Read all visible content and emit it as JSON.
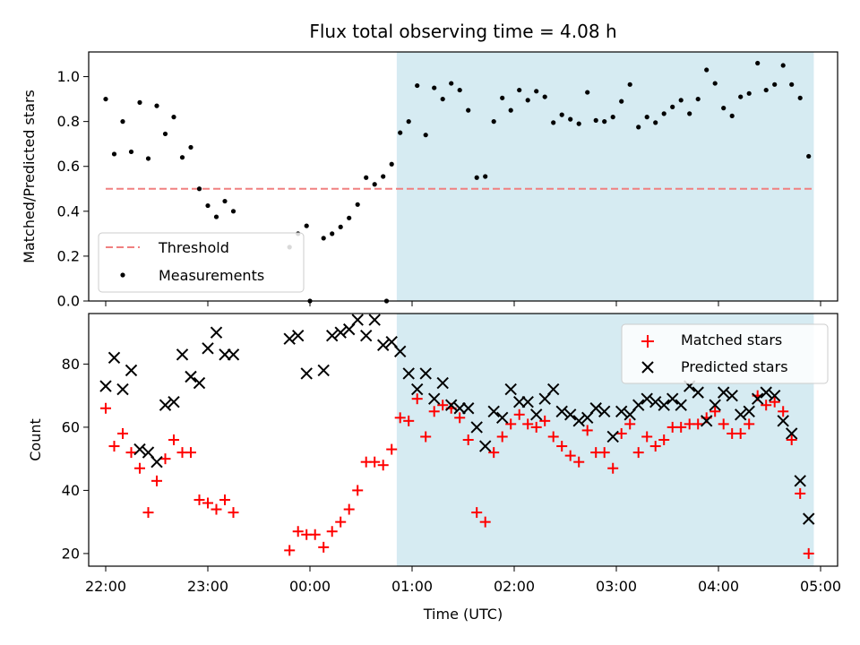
{
  "chart_data": [
    {
      "type": "scatter",
      "title": "Flux total observing time = 4.08 h",
      "ylabel": "Matched/Predicted stars",
      "xlabel": "",
      "xlim": [
        "21:50",
        "05:10"
      ],
      "ylim": [
        0.0,
        1.11
      ],
      "yticks": [
        "0.0",
        "0.2",
        "0.4",
        "0.6",
        "0.8",
        "1.0"
      ],
      "shaded_span": {
        "start": "00:51",
        "end": "04:56",
        "color": "#add8e6"
      },
      "threshold": {
        "name": "Threshold",
        "value": 0.5,
        "start": "22:00",
        "end": "04:56",
        "color": "#f08080"
      },
      "legend": {
        "position": "lower-left",
        "entries": [
          "Threshold",
          "Measurements"
        ]
      },
      "series": [
        {
          "name": "Measurements",
          "marker": "dot",
          "color": "#000000",
          "points": [
            [
              "22:00",
              0.9
            ],
            [
              "22:05",
              0.655
            ],
            [
              "22:10",
              0.8
            ],
            [
              "22:15",
              0.665
            ],
            [
              "22:20",
              0.885
            ],
            [
              "22:25",
              0.635
            ],
            [
              "22:30",
              0.87
            ],
            [
              "22:35",
              0.745
            ],
            [
              "22:40",
              0.82
            ],
            [
              "22:45",
              0.64
            ],
            [
              "22:50",
              0.685
            ],
            [
              "22:55",
              0.5
            ],
            [
              "23:00",
              0.425
            ],
            [
              "23:05",
              0.375
            ],
            [
              "23:10",
              0.445
            ],
            [
              "23:15",
              0.4
            ],
            [
              "23:48",
              0.24
            ],
            [
              "23:53",
              0.3
            ],
            [
              "23:58",
              0.335
            ],
            [
              "00:00",
              0.0
            ],
            [
              "00:08",
              0.28
            ],
            [
              "00:13",
              0.3
            ],
            [
              "00:18",
              0.33
            ],
            [
              "00:23",
              0.37
            ],
            [
              "00:28",
              0.43
            ],
            [
              "00:33",
              0.55
            ],
            [
              "00:38",
              0.52
            ],
            [
              "00:43",
              0.555
            ],
            [
              "00:45",
              0.0
            ],
            [
              "00:48",
              0.61
            ],
            [
              "00:53",
              0.75
            ],
            [
              "00:58",
              0.8
            ],
            [
              "01:03",
              0.96
            ],
            [
              "01:08",
              0.74
            ],
            [
              "01:13",
              0.95
            ],
            [
              "01:18",
              0.9
            ],
            [
              "01:23",
              0.97
            ],
            [
              "01:28",
              0.94
            ],
            [
              "01:33",
              0.85
            ],
            [
              "01:38",
              0.55
            ],
            [
              "01:43",
              0.555
            ],
            [
              "01:48",
              0.8
            ],
            [
              "01:53",
              0.905
            ],
            [
              "01:58",
              0.85
            ],
            [
              "02:03",
              0.94
            ],
            [
              "02:08",
              0.895
            ],
            [
              "02:13",
              0.935
            ],
            [
              "02:18",
              0.91
            ],
            [
              "02:23",
              0.795
            ],
            [
              "02:28",
              0.83
            ],
            [
              "02:33",
              0.81
            ],
            [
              "02:38",
              0.79
            ],
            [
              "02:43",
              0.93
            ],
            [
              "02:48",
              0.805
            ],
            [
              "02:53",
              0.8
            ],
            [
              "02:58",
              0.82
            ],
            [
              "03:03",
              0.89
            ],
            [
              "03:08",
              0.965
            ],
            [
              "03:13",
              0.775
            ],
            [
              "03:18",
              0.82
            ],
            [
              "03:23",
              0.795
            ],
            [
              "03:28",
              0.835
            ],
            [
              "03:33",
              0.865
            ],
            [
              "03:38",
              0.895
            ],
            [
              "03:43",
              0.835
            ],
            [
              "03:48",
              0.9
            ],
            [
              "03:53",
              1.03
            ],
            [
              "03:58",
              0.97
            ],
            [
              "04:03",
              0.86
            ],
            [
              "04:08",
              0.825
            ],
            [
              "04:13",
              0.91
            ],
            [
              "04:18",
              0.925
            ],
            [
              "04:23",
              1.06
            ],
            [
              "04:28",
              0.94
            ],
            [
              "04:33",
              0.965
            ],
            [
              "04:38",
              1.05
            ],
            [
              "04:43",
              0.965
            ],
            [
              "04:48",
              0.905
            ],
            [
              "04:53",
              0.645
            ]
          ]
        }
      ]
    },
    {
      "type": "scatter",
      "title": "",
      "xlabel": "Time (UTC)",
      "ylabel": "Count",
      "xlim": [
        "21:50",
        "05:10"
      ],
      "ylim": [
        16,
        96
      ],
      "xticks": [
        "22:00",
        "23:00",
        "00:00",
        "01:00",
        "02:00",
        "03:00",
        "04:00",
        "05:00"
      ],
      "yticks": [
        "20",
        "40",
        "60",
        "80"
      ],
      "shaded_span": {
        "start": "00:51",
        "end": "04:56",
        "color": "#add8e6"
      },
      "legend": {
        "position": "upper-right",
        "entries": [
          "Matched stars",
          "Predicted stars"
        ]
      },
      "series": [
        {
          "name": "Matched stars",
          "marker": "plus",
          "color": "#ff0000",
          "points": [
            [
              "22:00",
              66
            ],
            [
              "22:05",
              54
            ],
            [
              "22:10",
              58
            ],
            [
              "22:15",
              52
            ],
            [
              "22:20",
              47
            ],
            [
              "22:25",
              33
            ],
            [
              "22:30",
              43
            ],
            [
              "22:35",
              50
            ],
            [
              "22:40",
              56
            ],
            [
              "22:45",
              52
            ],
            [
              "22:50",
              52
            ],
            [
              "22:55",
              37
            ],
            [
              "23:00",
              36
            ],
            [
              "23:05",
              34
            ],
            [
              "23:10",
              37
            ],
            [
              "23:15",
              33
            ],
            [
              "23:48",
              21
            ],
            [
              "23:53",
              27
            ],
            [
              "23:58",
              26
            ],
            [
              "00:03",
              26
            ],
            [
              "00:08",
              22
            ],
            [
              "00:13",
              27
            ],
            [
              "00:18",
              30
            ],
            [
              "00:23",
              34
            ],
            [
              "00:28",
              40
            ],
            [
              "00:33",
              49
            ],
            [
              "00:38",
              49
            ],
            [
              "00:43",
              48
            ],
            [
              "00:48",
              53
            ],
            [
              "00:53",
              63
            ],
            [
              "00:58",
              62
            ],
            [
              "01:03",
              69
            ],
            [
              "01:08",
              57
            ],
            [
              "01:13",
              65
            ],
            [
              "01:18",
              67
            ],
            [
              "01:23",
              66
            ],
            [
              "01:28",
              63
            ],
            [
              "01:33",
              56
            ],
            [
              "01:38",
              33
            ],
            [
              "01:43",
              30
            ],
            [
              "01:48",
              52
            ],
            [
              "01:53",
              57
            ],
            [
              "01:58",
              61
            ],
            [
              "02:03",
              64
            ],
            [
              "02:08",
              61
            ],
            [
              "02:13",
              60
            ],
            [
              "02:18",
              62
            ],
            [
              "02:23",
              57
            ],
            [
              "02:28",
              54
            ],
            [
              "02:33",
              51
            ],
            [
              "02:38",
              49
            ],
            [
              "02:43",
              59
            ],
            [
              "02:48",
              52
            ],
            [
              "02:53",
              52
            ],
            [
              "02:58",
              47
            ],
            [
              "03:03",
              58
            ],
            [
              "03:08",
              61
            ],
            [
              "03:13",
              52
            ],
            [
              "03:18",
              57
            ],
            [
              "03:23",
              54
            ],
            [
              "03:28",
              56
            ],
            [
              "03:33",
              60
            ],
            [
              "03:38",
              60
            ],
            [
              "03:43",
              61
            ],
            [
              "03:48",
              61
            ],
            [
              "03:53",
              63
            ],
            [
              "03:58",
              65
            ],
            [
              "04:03",
              61
            ],
            [
              "04:08",
              58
            ],
            [
              "04:13",
              58
            ],
            [
              "04:18",
              61
            ],
            [
              "04:23",
              70
            ],
            [
              "04:28",
              67
            ],
            [
              "04:33",
              68
            ],
            [
              "04:38",
              65
            ],
            [
              "04:43",
              56
            ],
            [
              "04:48",
              39
            ],
            [
              "04:53",
              20
            ]
          ]
        },
        {
          "name": "Predicted stars",
          "marker": "x",
          "color": "#000000",
          "points": [
            [
              "22:00",
              73
            ],
            [
              "22:05",
              82
            ],
            [
              "22:10",
              72
            ],
            [
              "22:15",
              78
            ],
            [
              "22:20",
              53
            ],
            [
              "22:25",
              52
            ],
            [
              "22:30",
              49
            ],
            [
              "22:35",
              67
            ],
            [
              "22:40",
              68
            ],
            [
              "22:45",
              83
            ],
            [
              "22:50",
              76
            ],
            [
              "22:55",
              74
            ],
            [
              "23:00",
              85
            ],
            [
              "23:05",
              90
            ],
            [
              "23:10",
              83
            ],
            [
              "23:15",
              83
            ],
            [
              "23:48",
              88
            ],
            [
              "23:53",
              89
            ],
            [
              "23:58",
              77
            ],
            [
              "00:08",
              78
            ],
            [
              "00:13",
              89
            ],
            [
              "00:18",
              90
            ],
            [
              "00:23",
              91
            ],
            [
              "00:28",
              94
            ],
            [
              "00:33",
              89
            ],
            [
              "00:38",
              94
            ],
            [
              "00:43",
              86
            ],
            [
              "00:48",
              87
            ],
            [
              "00:53",
              84
            ],
            [
              "00:58",
              77
            ],
            [
              "01:03",
              72
            ],
            [
              "01:08",
              77
            ],
            [
              "01:13",
              69
            ],
            [
              "01:18",
              74
            ],
            [
              "01:23",
              67
            ],
            [
              "01:28",
              66
            ],
            [
              "01:33",
              66
            ],
            [
              "01:38",
              60
            ],
            [
              "01:43",
              54
            ],
            [
              "01:48",
              65
            ],
            [
              "01:53",
              63
            ],
            [
              "01:58",
              72
            ],
            [
              "02:03",
              68
            ],
            [
              "02:08",
              68
            ],
            [
              "02:13",
              64
            ],
            [
              "02:18",
              69
            ],
            [
              "02:23",
              72
            ],
            [
              "02:28",
              65
            ],
            [
              "02:33",
              64
            ],
            [
              "02:38",
              62
            ],
            [
              "02:43",
              63
            ],
            [
              "02:48",
              66
            ],
            [
              "02:53",
              65
            ],
            [
              "02:58",
              57
            ],
            [
              "03:03",
              65
            ],
            [
              "03:08",
              64
            ],
            [
              "03:13",
              67
            ],
            [
              "03:18",
              69
            ],
            [
              "03:23",
              68
            ],
            [
              "03:28",
              67
            ],
            [
              "03:33",
              69
            ],
            [
              "03:38",
              67
            ],
            [
              "03:43",
              73
            ],
            [
              "03:48",
              71
            ],
            [
              "03:53",
              62
            ],
            [
              "03:58",
              67
            ],
            [
              "04:03",
              71
            ],
            [
              "04:08",
              70
            ],
            [
              "04:13",
              64
            ],
            [
              "04:18",
              65
            ],
            [
              "04:23",
              69
            ],
            [
              "04:28",
              71
            ],
            [
              "04:33",
              70
            ],
            [
              "04:38",
              62
            ],
            [
              "04:43",
              58
            ],
            [
              "04:48",
              43
            ],
            [
              "04:53",
              31
            ]
          ]
        }
      ]
    }
  ]
}
